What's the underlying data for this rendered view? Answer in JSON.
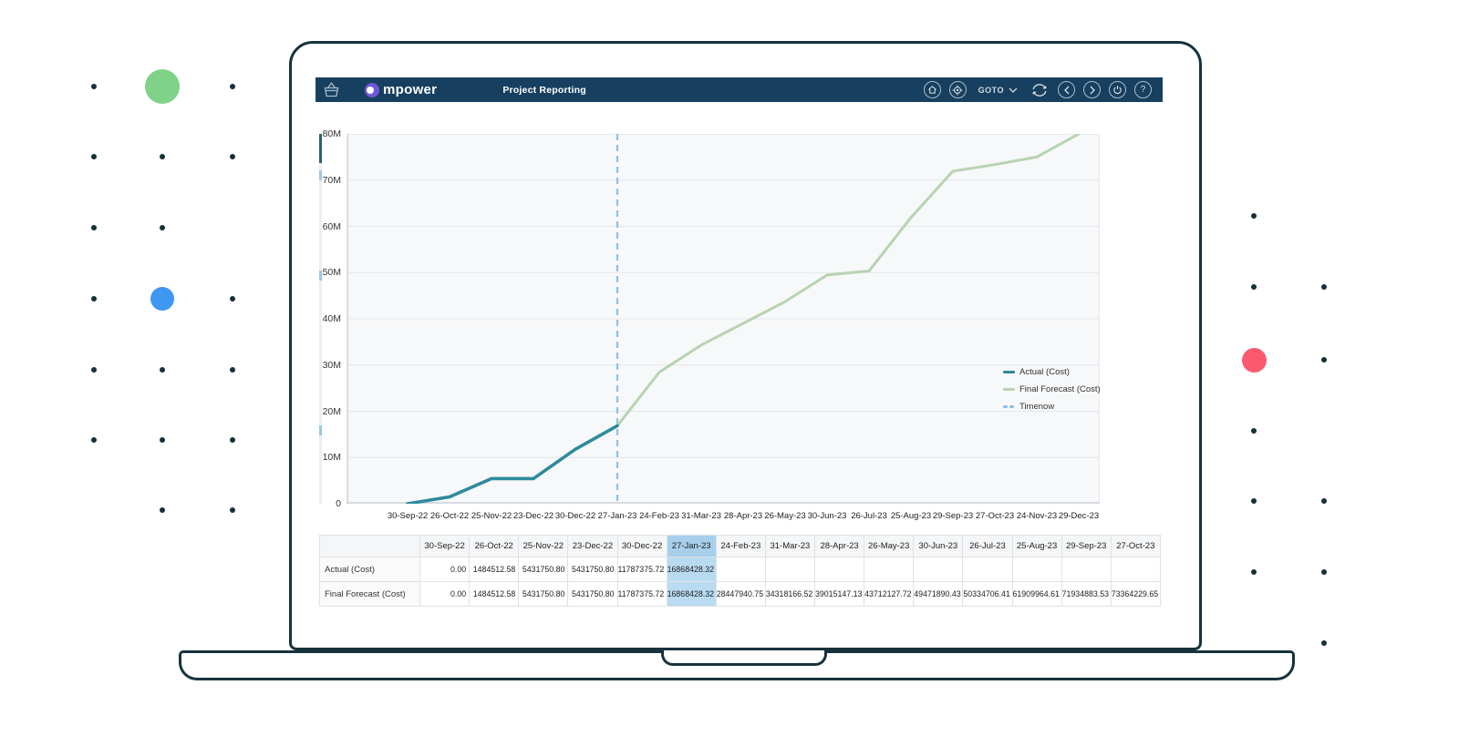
{
  "header": {
    "logo_text": "mpower",
    "app_title": "Project Reporting",
    "goto_label": "GOTO",
    "bar_color": "#174060",
    "brand_purple": "#6f58d8"
  },
  "chart_data": {
    "type": "line",
    "title": "",
    "xlabel": "",
    "ylabel": "",
    "ylim": [
      0,
      80000000
    ],
    "grid": true,
    "legend_position": "inside-right",
    "ytick_labels": [
      "0",
      "10M",
      "20M",
      "30M",
      "40M",
      "50M",
      "60M",
      "70M",
      "80M"
    ],
    "categories": [
      "30-Sep-22",
      "26-Oct-22",
      "25-Nov-22",
      "23-Dec-22",
      "30-Dec-22",
      "27-Jan-23",
      "24-Feb-23",
      "31-Mar-23",
      "28-Apr-23",
      "26-May-23",
      "30-Jun-23",
      "26-Jul-23",
      "25-Aug-23",
      "29-Sep-23",
      "27-Oct-23",
      "24-Nov-23",
      "29-Dec-23"
    ],
    "series": [
      {
        "name": "Actual (Cost)",
        "color": "#2f8a9c",
        "width": 3.6,
        "values": [
          0,
          1484512.58,
          5431750.8,
          5431750.8,
          11787375.72,
          16868428.32
        ]
      },
      {
        "name": "Final Forecast (Cost)",
        "color": "#b8d3b2",
        "width": 3,
        "values": [
          0,
          1484512.58,
          5431750.8,
          5431750.8,
          11787375.72,
          16868428.32,
          28447940.75,
          34318166.52,
          39015147.13,
          43712127.72,
          49471890.43,
          50334706.41,
          61909964.61,
          71934883.53,
          73364229.65,
          75000000,
          80000000
        ]
      }
    ],
    "timenow": {
      "name": "Timenow",
      "category": "27-Jan-23",
      "index": 5,
      "color": "#8fc0ea"
    }
  },
  "table": {
    "columns": [
      "",
      "30-Sep-22",
      "26-Oct-22",
      "25-Nov-22",
      "23-Dec-22",
      "30-Dec-22",
      "27-Jan-23",
      "24-Feb-23",
      "31-Mar-23",
      "28-Apr-23",
      "26-May-23",
      "30-Jun-23",
      "26-Jul-23",
      "25-Aug-23",
      "29-Sep-23",
      "27-Oct-23"
    ],
    "highlight_column": "27-Jan-23",
    "rows": [
      {
        "label": "Actual (Cost)",
        "values": [
          "0.00",
          "1484512.58",
          "5431750.80",
          "5431750.80",
          "11787375.72",
          "16868428.32",
          "",
          "",
          "",
          "",
          "",
          "",
          "",
          "",
          ""
        ]
      },
      {
        "label": "Final Forecast (Cost)",
        "values": [
          "0.00",
          "1484512.58",
          "5431750.80",
          "5431750.80",
          "11787375.72",
          "16868428.32",
          "28447940.75",
          "34318166.52",
          "39015147.13",
          "43712127.72",
          "49471890.43",
          "50334706.41",
          "61909964.61",
          "71934883.53",
          "73364229.65"
        ]
      }
    ]
  },
  "decor": {
    "green_circle": "#7fd287",
    "blue_circle": "#3f97f2",
    "red_circle": "#fb5a6e",
    "dot_color": "#143039",
    "outline_color": "#16333c"
  }
}
